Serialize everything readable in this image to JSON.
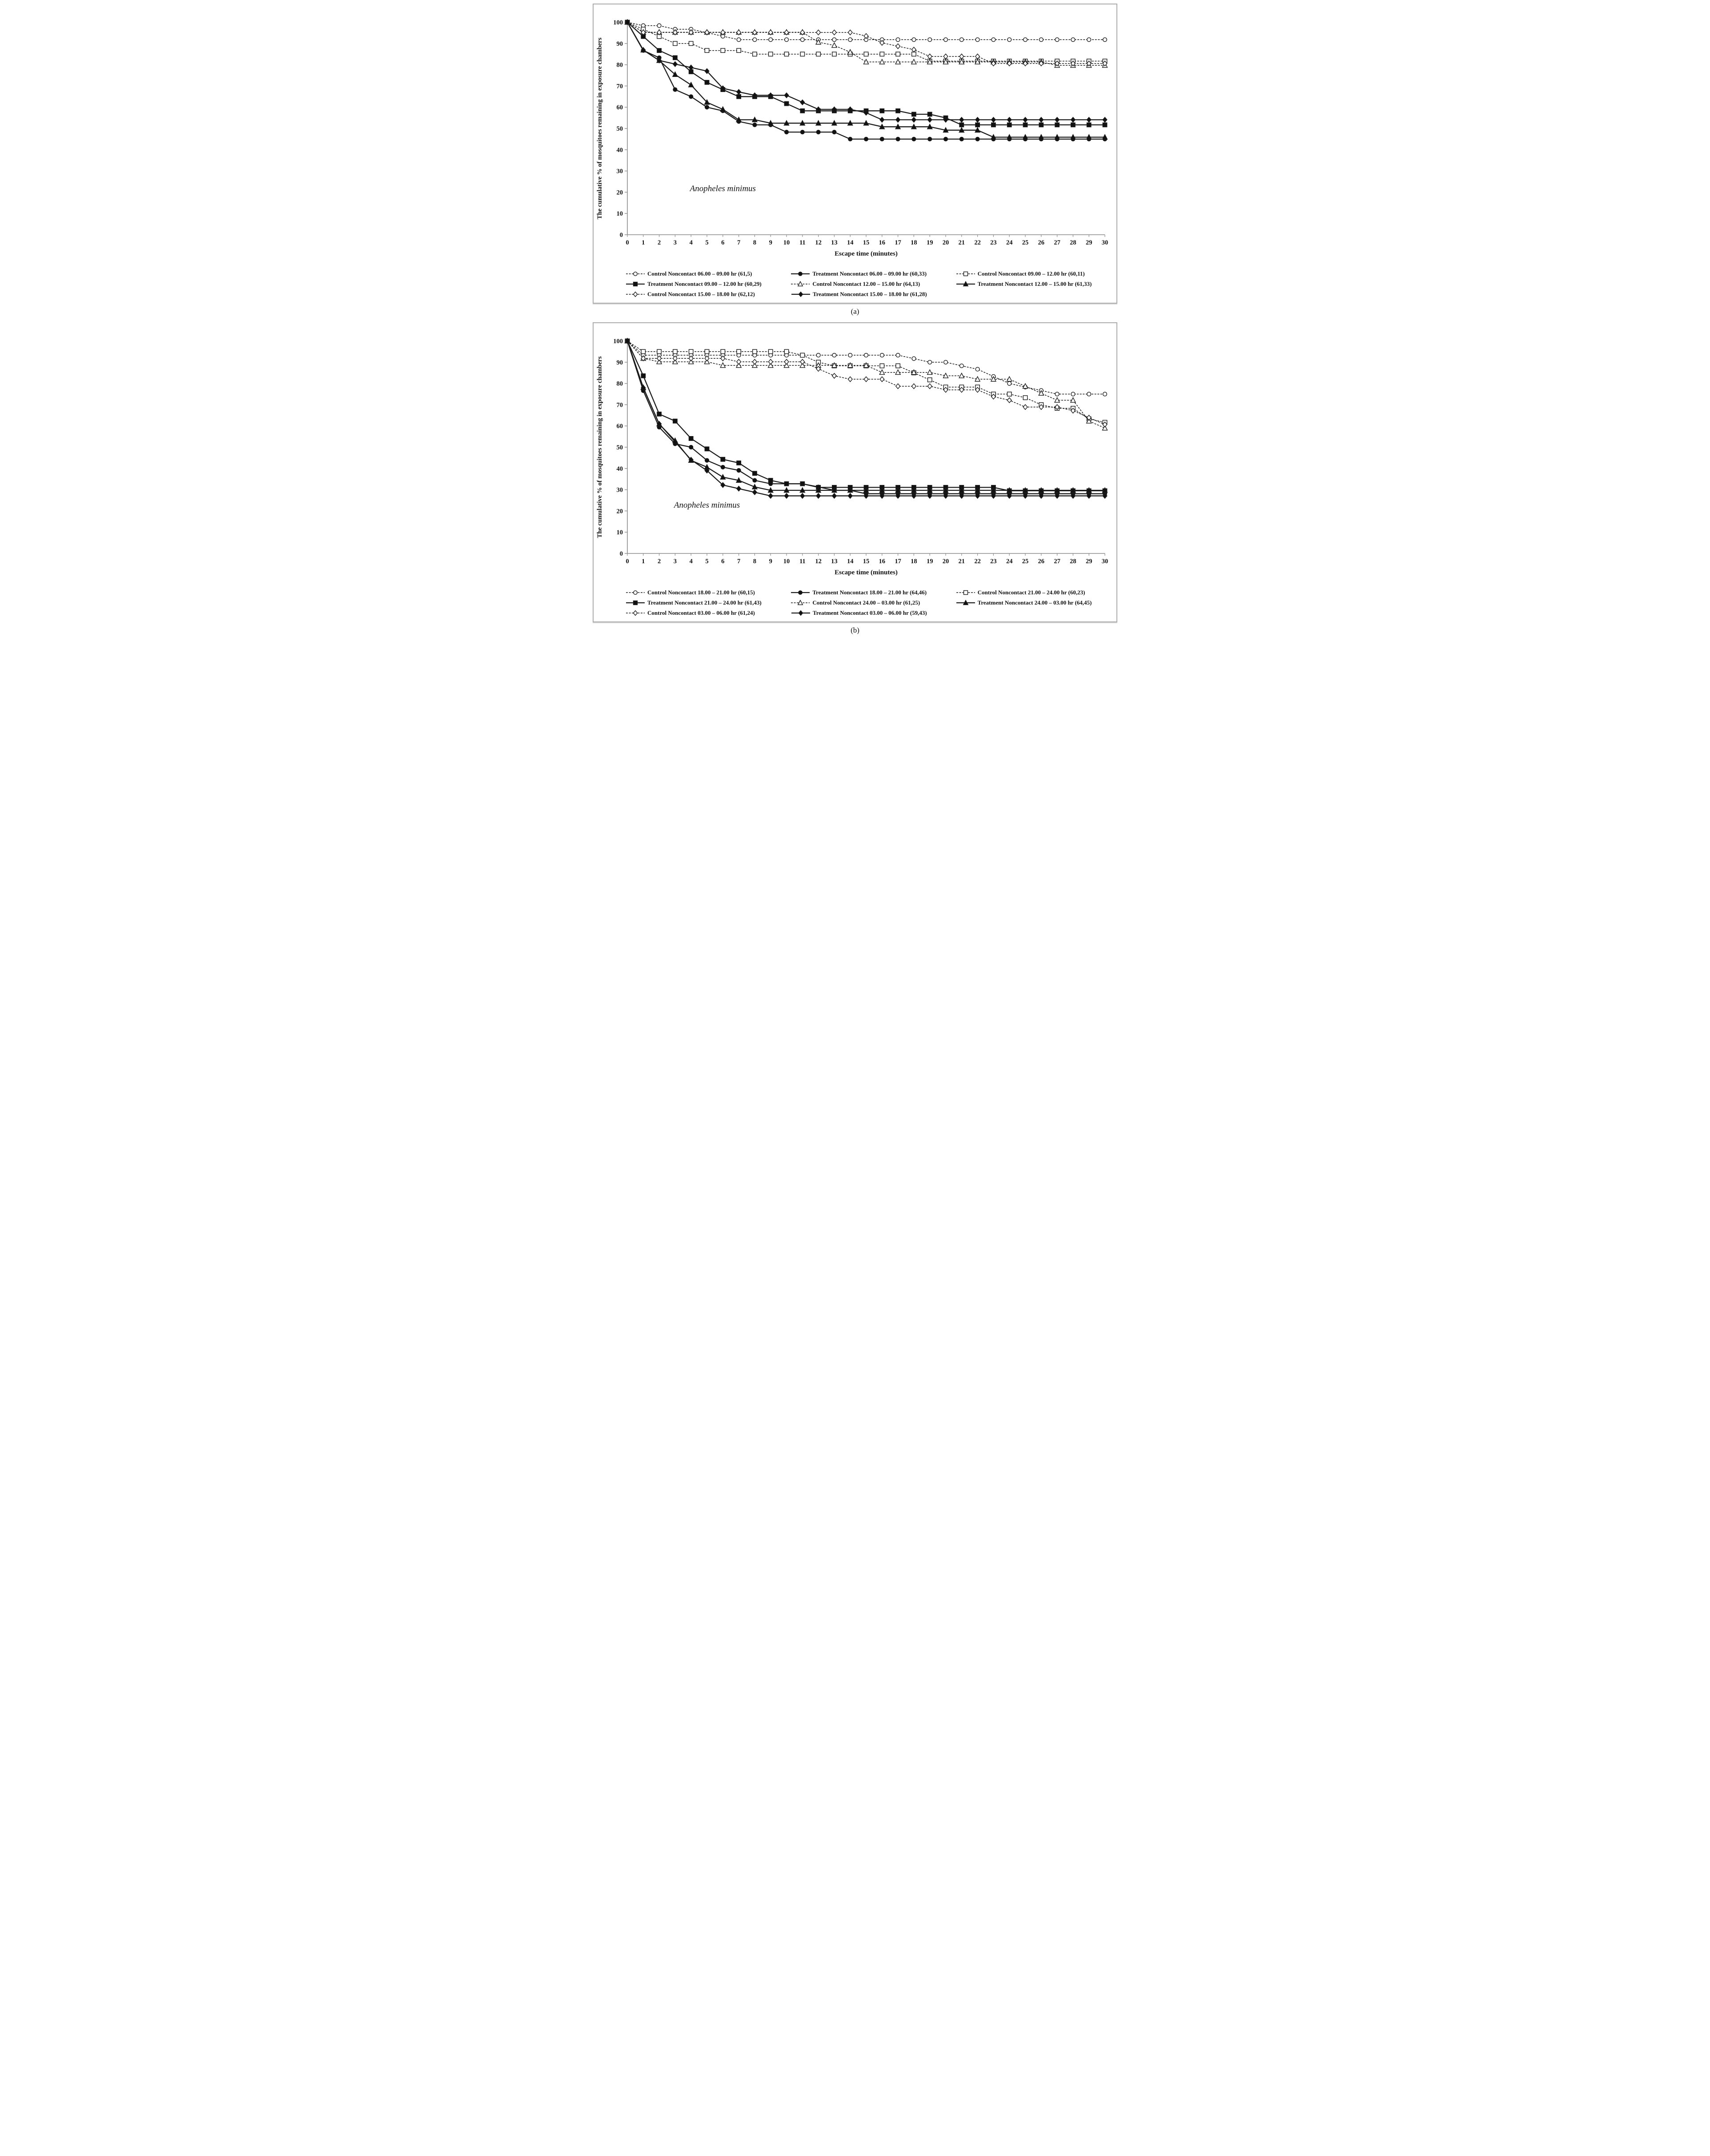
{
  "page": {
    "background": "#ffffff"
  },
  "colors": {
    "series_line": "#1a1a1a",
    "marker_fill": "#111111",
    "marker_open_fill": "#ffffff",
    "axis_line": "#8c8c8c",
    "panel_border": "#ababab",
    "text": "#111111"
  },
  "chart_data": [
    {
      "type": "line",
      "caption": "(a)",
      "inner_label": {
        "text": "Anopheles minimus",
        "t": 6.0,
        "value": 20.5
      },
      "xlabel": "Escape time (minutes)",
      "ylabel": "The cumulative % of mosquitoes remaining in exposure chambers",
      "x": [
        0,
        1,
        2,
        3,
        4,
        5,
        6,
        7,
        8,
        9,
        10,
        11,
        12,
        13,
        14,
        15,
        16,
        17,
        18,
        19,
        20,
        21,
        22,
        23,
        24,
        25,
        26,
        27,
        28,
        29,
        30
      ],
      "xlim": [
        0,
        30
      ],
      "ylim": [
        0,
        100
      ],
      "y_tick_step": 10,
      "grid": "off",
      "legend_position": "bottom",
      "series": [
        {
          "name": "Control Noncontact 06.00 – 09.00 hr (61,5)",
          "marker": "circle",
          "fill": "open",
          "line": "dashed",
          "values": [
            100,
            98.4,
            98.4,
            96.7,
            96.7,
            95.1,
            93.4,
            91.8,
            91.8,
            91.8,
            91.8,
            91.8,
            91.8,
            91.8,
            91.8,
            91.8,
            91.8,
            91.8,
            91.8,
            91.8,
            91.8,
            91.8,
            91.8,
            91.8,
            91.8,
            91.8,
            91.8,
            91.8,
            91.8,
            91.8,
            91.8
          ]
        },
        {
          "name": "Treatment Noncontact 06.00 – 09.00 hr (60,33)",
          "marker": "circle",
          "fill": "filled",
          "line": "solid",
          "values": [
            100,
            86.7,
            83.3,
            68.3,
            65,
            60,
            58.3,
            53.3,
            51.7,
            51.7,
            48.3,
            48.3,
            48.3,
            48.3,
            45,
            45,
            45,
            45,
            45,
            45,
            45,
            45,
            45,
            45,
            45,
            45,
            45,
            45,
            45,
            45,
            45
          ]
        },
        {
          "name": "Control Noncontact 09.00 – 12.00 hr (60,11)",
          "marker": "square",
          "fill": "open",
          "line": "dashed",
          "values": [
            100,
            96.7,
            93.3,
            90,
            90,
            86.7,
            86.7,
            86.7,
            85,
            85,
            85,
            85,
            85,
            85,
            85,
            85,
            85,
            85,
            85,
            81.7,
            81.7,
            81.7,
            81.7,
            81.7,
            81.7,
            81.7,
            81.7,
            81.7,
            81.7,
            81.7,
            81.7
          ]
        },
        {
          "name": "Treatment Noncontact 09.00 – 12.00 hr (60,29)",
          "marker": "square",
          "fill": "filled",
          "line": "solid",
          "values": [
            100,
            93.3,
            86.7,
            83.3,
            76.7,
            71.7,
            68.3,
            65,
            65,
            65,
            61.7,
            58.3,
            58.3,
            58.3,
            58.3,
            58.3,
            58.3,
            58.3,
            56.7,
            56.7,
            55,
            51.7,
            51.7,
            51.7,
            51.7,
            51.7,
            51.7,
            51.7,
            51.7,
            51.7,
            51.7
          ]
        },
        {
          "name": "Control Noncontact 12.00 – 15.00 hr (64,13)",
          "marker": "triangle",
          "fill": "open",
          "line": "dashed",
          "values": [
            100,
            95.3,
            95.3,
            95.3,
            95.3,
            95.3,
            95.3,
            95.3,
            95.3,
            95.3,
            95.3,
            95.3,
            90.6,
            89.1,
            85.9,
            81.3,
            81.3,
            81.3,
            81.3,
            81.3,
            81.3,
            81.3,
            81.3,
            81.3,
            81.3,
            81.3,
            81.3,
            79.7,
            79.7,
            79.7,
            79.7
          ]
        },
        {
          "name": "Treatment Noncontact 12.00 – 15.00 hr (61,33)",
          "marker": "triangle",
          "fill": "filled",
          "line": "solid",
          "values": [
            100,
            86.9,
            82,
            75.4,
            70.5,
            62.3,
            59,
            54.1,
            54.1,
            52.5,
            52.5,
            52.5,
            52.5,
            52.5,
            52.5,
            52.5,
            50.8,
            50.8,
            50.8,
            50.8,
            49.2,
            49.2,
            49.2,
            45.9,
            45.9,
            45.9,
            45.9,
            45.9,
            45.9,
            45.9,
            45.9
          ]
        },
        {
          "name": "Control Noncontact 15.00 – 18.00 hr (62,12)",
          "marker": "diamond",
          "fill": "open",
          "line": "dashed",
          "values": [
            100,
            95.2,
            95.2,
            95.2,
            95.2,
            95.2,
            95.2,
            95.2,
            95.2,
            95.2,
            95.2,
            95.2,
            95.2,
            95.2,
            95.2,
            93.5,
            90.3,
            88.7,
            87.1,
            83.9,
            83.9,
            83.9,
            83.9,
            80.6,
            80.6,
            80.6,
            80.6,
            80.6,
            80.6,
            80.6,
            80.6
          ]
        },
        {
          "name": "Treatment Noncontact 15.00 – 18.00 hr (61,28)",
          "marker": "diamond",
          "fill": "filled",
          "line": "solid",
          "values": [
            100,
            86.9,
            82,
            80.3,
            78.7,
            77,
            68.9,
            67.2,
            65.6,
            65.6,
            65.6,
            62.3,
            59,
            59,
            59,
            57.4,
            54.1,
            54.1,
            54.1,
            54.1,
            54.1,
            54.1,
            54.1,
            54.1,
            54.1,
            54.1,
            54.1,
            54.1,
            54.1,
            54.1,
            54.1
          ]
        }
      ]
    },
    {
      "type": "line",
      "caption": "(b)",
      "inner_label": {
        "text": "Anopheles minimus",
        "t": 5.0,
        "value": 21.5
      },
      "xlabel": "Escape time (minutes)",
      "ylabel": "The cumulative % of mosquitoes remaining in exposure chambers",
      "x": [
        0,
        1,
        2,
        3,
        4,
        5,
        6,
        7,
        8,
        9,
        10,
        11,
        12,
        13,
        14,
        15,
        16,
        17,
        18,
        19,
        20,
        21,
        22,
        23,
        24,
        25,
        26,
        27,
        28,
        29,
        30
      ],
      "xlim": [
        0,
        30
      ],
      "ylim": [
        0,
        100
      ],
      "y_tick_step": 10,
      "grid": "off",
      "legend_position": "bottom",
      "series": [
        {
          "name": "Control Noncontact 18.00 – 21.00 hr (60,15)",
          "marker": "circle",
          "fill": "open",
          "line": "dashed",
          "values": [
            100,
            93.3,
            93.3,
            93.3,
            93.3,
            93.3,
            93.3,
            93.3,
            93.3,
            93.3,
            93.3,
            93.3,
            93.3,
            93.3,
            93.3,
            93.3,
            93.3,
            93.3,
            91.7,
            90,
            90,
            88.3,
            86.7,
            83.3,
            80,
            78.3,
            76.7,
            75,
            75,
            75,
            75
          ]
        },
        {
          "name": "Treatment Noncontact 18.00 – 21.00 hr (64,46)",
          "marker": "circle",
          "fill": "filled",
          "line": "solid",
          "values": [
            100,
            76.6,
            59.4,
            51.6,
            50,
            43.8,
            40.6,
            39.1,
            34.4,
            32.8,
            32.8,
            32.8,
            31.3,
            29.7,
            29.7,
            28.1,
            28.1,
            28.1,
            28.1,
            28.1,
            28.1,
            28.1,
            28.1,
            28.1,
            28.1,
            28.1,
            28.1,
            28.1,
            28.1,
            28.1,
            28.1
          ]
        },
        {
          "name": "Control Noncontact 21.00 – 24.00 hr (60,23)",
          "marker": "square",
          "fill": "open",
          "line": "dashed",
          "values": [
            100,
            95,
            95,
            95,
            95,
            95,
            95,
            95,
            95,
            95,
            95,
            93.3,
            90,
            88.3,
            88.3,
            88.3,
            88.3,
            88.3,
            85,
            81.7,
            78.3,
            78.3,
            78.3,
            75,
            75,
            73.3,
            70,
            68.3,
            68.3,
            63.3,
            61.7
          ]
        },
        {
          "name": "Treatment Noncontact 21.00 – 24.00 hr (61,43)",
          "marker": "square",
          "fill": "filled",
          "line": "solid",
          "values": [
            100,
            83.6,
            65.6,
            62.3,
            54.1,
            49.2,
            44.3,
            42.6,
            37.7,
            34.4,
            32.8,
            32.8,
            31.1,
            31.1,
            31.1,
            31.1,
            31.1,
            31.1,
            31.1,
            31.1,
            31.1,
            31.1,
            31.1,
            31.1,
            29.5,
            29.5,
            29.5,
            29.5,
            29.5,
            29.5,
            29.5
          ]
        },
        {
          "name": "Control Noncontact 24.00 – 03.00 hr (61,25)",
          "marker": "triangle",
          "fill": "open",
          "line": "dashed",
          "values": [
            100,
            91.8,
            90.2,
            90.2,
            90.2,
            90.2,
            88.5,
            88.5,
            88.5,
            88.5,
            88.5,
            88.5,
            88.5,
            88.5,
            88.5,
            88.5,
            85.2,
            85.2,
            85.2,
            85.2,
            83.6,
            83.6,
            82,
            82,
            82,
            78.7,
            75.4,
            72.1,
            72.1,
            62.3,
            59
          ]
        },
        {
          "name": "Treatment Noncontact 24.00 – 03.00 hr (64,45)",
          "marker": "triangle",
          "fill": "filled",
          "line": "solid",
          "values": [
            100,
            78.1,
            60.9,
            53.1,
            43.8,
            40.6,
            35.9,
            34.4,
            31.3,
            29.7,
            29.7,
            29.7,
            29.7,
            29.7,
            29.7,
            29.7,
            29.7,
            29.7,
            29.7,
            29.7,
            29.7,
            29.7,
            29.7,
            29.7,
            29.7,
            29.7,
            29.7,
            29.7,
            29.7,
            29.7,
            29.7
          ]
        },
        {
          "name": "Control Noncontact 03.00 – 06.00 hr (61,24)",
          "marker": "diamond",
          "fill": "open",
          "line": "dashed",
          "values": [
            100,
            91.8,
            91.8,
            91.8,
            91.8,
            91.8,
            91.8,
            90.2,
            90.2,
            90.2,
            90.2,
            90.2,
            86.9,
            83.6,
            82,
            82,
            82,
            78.7,
            78.7,
            78.7,
            77,
            77,
            77,
            73.8,
            72.1,
            68.9,
            68.9,
            68.9,
            67.2,
            63.9,
            60.7
          ]
        },
        {
          "name": "Treatment Noncontact 03.00 – 06.00 hr (59,43)",
          "marker": "diamond",
          "fill": "filled",
          "line": "solid",
          "values": [
            100,
            78,
            61,
            52.5,
            44.1,
            39,
            32.2,
            30.5,
            28.8,
            27.1,
            27.1,
            27.1,
            27.1,
            27.1,
            27.1,
            27.1,
            27.1,
            27.1,
            27.1,
            27.1,
            27.1,
            27.1,
            27.1,
            27.1,
            27.1,
            27.1,
            27.1,
            27.1,
            27.1,
            27.1,
            27.1
          ]
        }
      ]
    }
  ]
}
